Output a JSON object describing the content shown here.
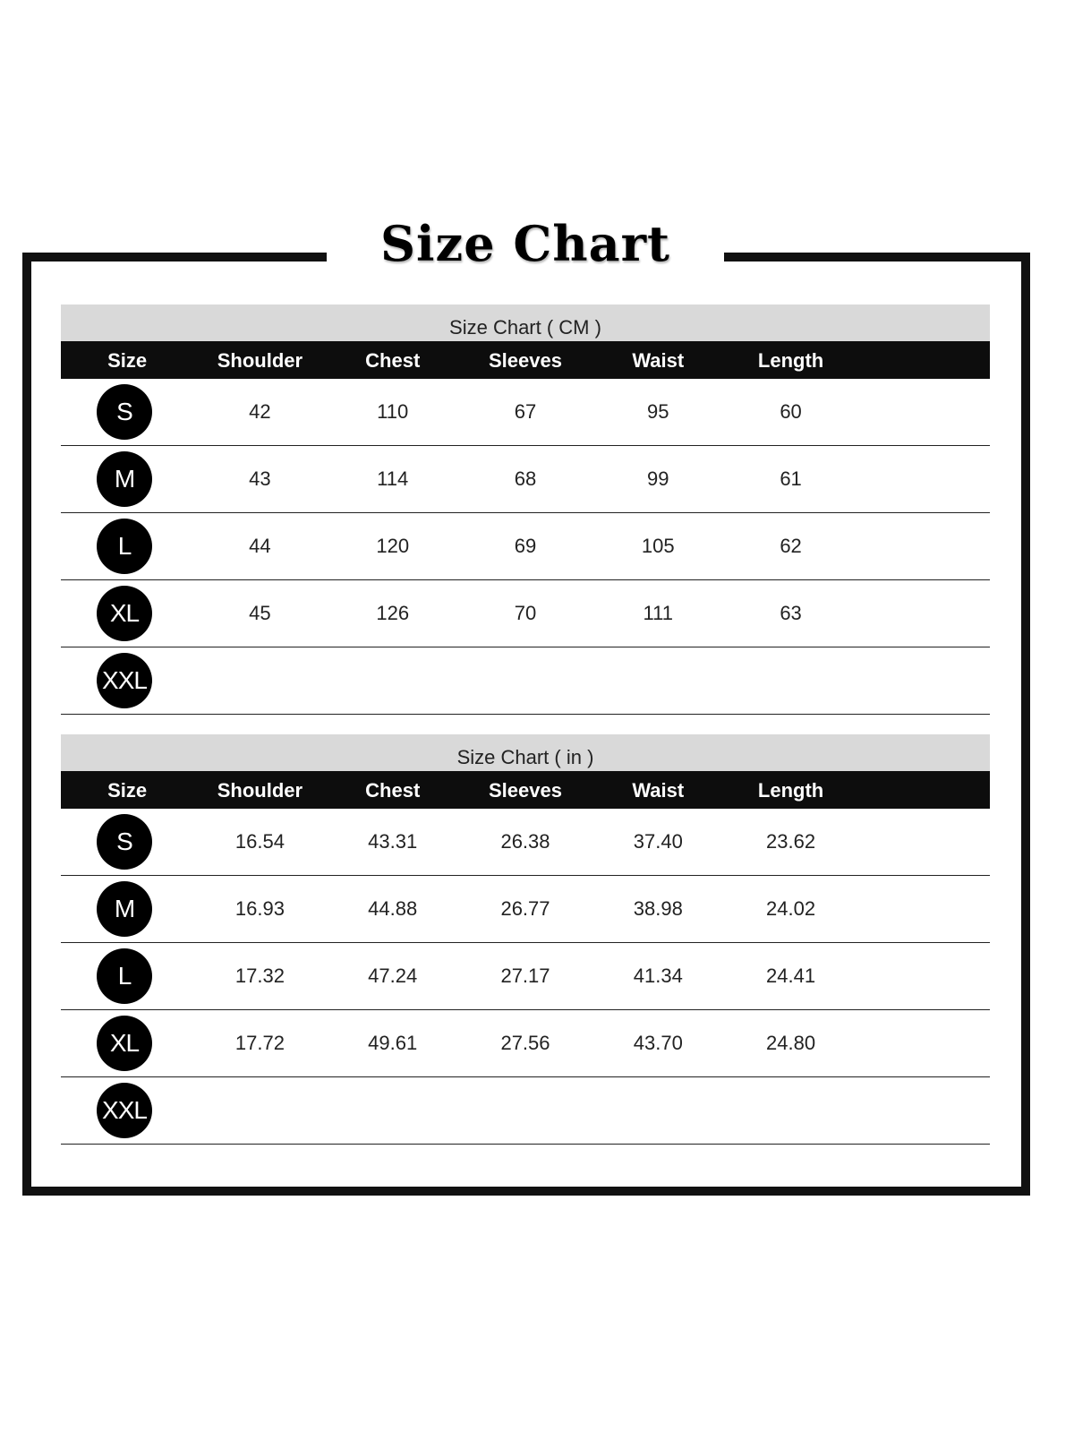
{
  "title": "Size Chart",
  "columns": [
    "Size",
    "Shoulder",
    "Chest",
    "Sleeves",
    "Waist",
    "Length"
  ],
  "tables": [
    {
      "caption": "Size Chart ( CM )",
      "rows": [
        {
          "size": "S",
          "values": [
            "42",
            "110",
            "67",
            "95",
            "60"
          ]
        },
        {
          "size": "M",
          "values": [
            "43",
            "114",
            "68",
            "99",
            "61"
          ]
        },
        {
          "size": "L",
          "values": [
            "44",
            "120",
            "69",
            "105",
            "62"
          ]
        },
        {
          "size": "XL",
          "values": [
            "45",
            "126",
            "70",
            "111",
            "63"
          ]
        },
        {
          "size": "XXL",
          "values": [
            "",
            "",
            "",
            "",
            ""
          ]
        }
      ]
    },
    {
      "caption": "Size Chart ( in )",
      "rows": [
        {
          "size": "S",
          "values": [
            "16.54",
            "43.31",
            "26.38",
            "37.40",
            "23.62"
          ]
        },
        {
          "size": "M",
          "values": [
            "16.93",
            "44.88",
            "26.77",
            "38.98",
            "24.02"
          ]
        },
        {
          "size": "L",
          "values": [
            "17.32",
            "47.24",
            "27.17",
            "41.34",
            "24.41"
          ]
        },
        {
          "size": "XL",
          "values": [
            "17.72",
            "49.61",
            "27.56",
            "43.70",
            "24.80"
          ]
        },
        {
          "size": "XXL",
          "values": [
            "",
            "",
            "",
            "",
            ""
          ]
        }
      ]
    }
  ]
}
